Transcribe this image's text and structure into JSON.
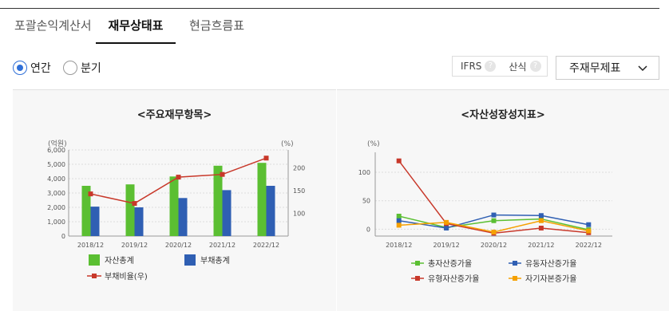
{
  "tabs": [
    {
      "label": "포괄손익계산서"
    },
    {
      "label": "재무상태표"
    },
    {
      "label": "현금흐름표"
    }
  ],
  "period": {
    "options": [
      {
        "label": "연간",
        "checked": true
      },
      {
        "label": "분기",
        "checked": false
      }
    ]
  },
  "options": {
    "ifrs": "IFRS",
    "calc": "산식",
    "help": "?"
  },
  "statement_select": {
    "value": "주재무제표"
  },
  "colors": {
    "green": "#5bbf32",
    "blue": "#2f5fb3",
    "red": "#c8382a",
    "orange": "#f5a000",
    "accent": "#2f6fd8"
  },
  "chart_data": [
    {
      "type": "bar",
      "title": "<주요재무항목>",
      "ylabel": "(억원)",
      "y2label": "(%)",
      "categories": [
        "2018/12",
        "2019/12",
        "2020/12",
        "2021/12",
        "2022/12"
      ],
      "ylim": [
        0,
        6000
      ],
      "yticks": [
        "0",
        "1,000",
        "2,000",
        "3,000",
        "4,000",
        "5,000",
        "6,000"
      ],
      "y2lim": [
        50,
        240
      ],
      "y2ticks": [
        "100",
        "150",
        "200"
      ],
      "series": [
        {
          "name": "자산총계",
          "type": "bar",
          "axis": "left",
          "color": "#5bbf32",
          "values": [
            3500,
            3600,
            4150,
            4900,
            5100
          ]
        },
        {
          "name": "부채총계",
          "type": "bar",
          "axis": "left",
          "color": "#2f5fb3",
          "values": [
            2050,
            2000,
            2650,
            3200,
            3500
          ]
        },
        {
          "name": "부채비율(우)",
          "type": "line",
          "axis": "right",
          "color": "#c8382a",
          "values": [
            143,
            122,
            180,
            186,
            222
          ]
        }
      ]
    },
    {
      "type": "line",
      "title": "<자산성장성지표>",
      "ylabel": "(%)",
      "categories": [
        "2018/12",
        "2019/12",
        "2020/12",
        "2021/12",
        "2022/12"
      ],
      "ylim": [
        -12,
        135
      ],
      "yticks": [
        "0",
        "50",
        "100"
      ],
      "series": [
        {
          "name": "총자산증가율",
          "color": "#5bbf32",
          "values": [
            23,
            3,
            15,
            18,
            -1
          ]
        },
        {
          "name": "유동자산증가율",
          "color": "#2f5fb3",
          "values": [
            15,
            2,
            25,
            24,
            8
          ]
        },
        {
          "name": "유형자산증가율",
          "color": "#c8382a",
          "values": [
            120,
            10,
            -7,
            2,
            -6
          ]
        },
        {
          "name": "자기자본증가율",
          "color": "#f5a000",
          "values": [
            7,
            12,
            -5,
            15,
            -3
          ]
        }
      ]
    }
  ]
}
